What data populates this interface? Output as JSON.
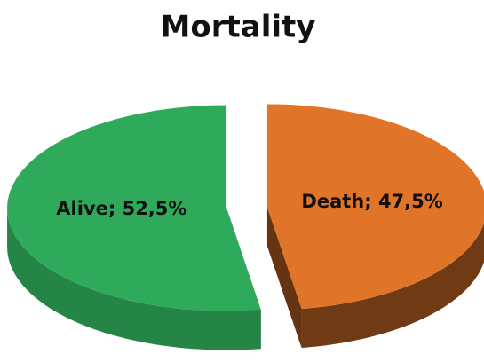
{
  "chart_data": {
    "type": "pie",
    "title": "Mortality",
    "values": [
      47.5,
      52.5
    ],
    "value_labels": [
      "Death; 47,5%",
      "Alive; 52,5%"
    ],
    "colors": [
      "#e07428",
      "#2eaa5a"
    ]
  }
}
